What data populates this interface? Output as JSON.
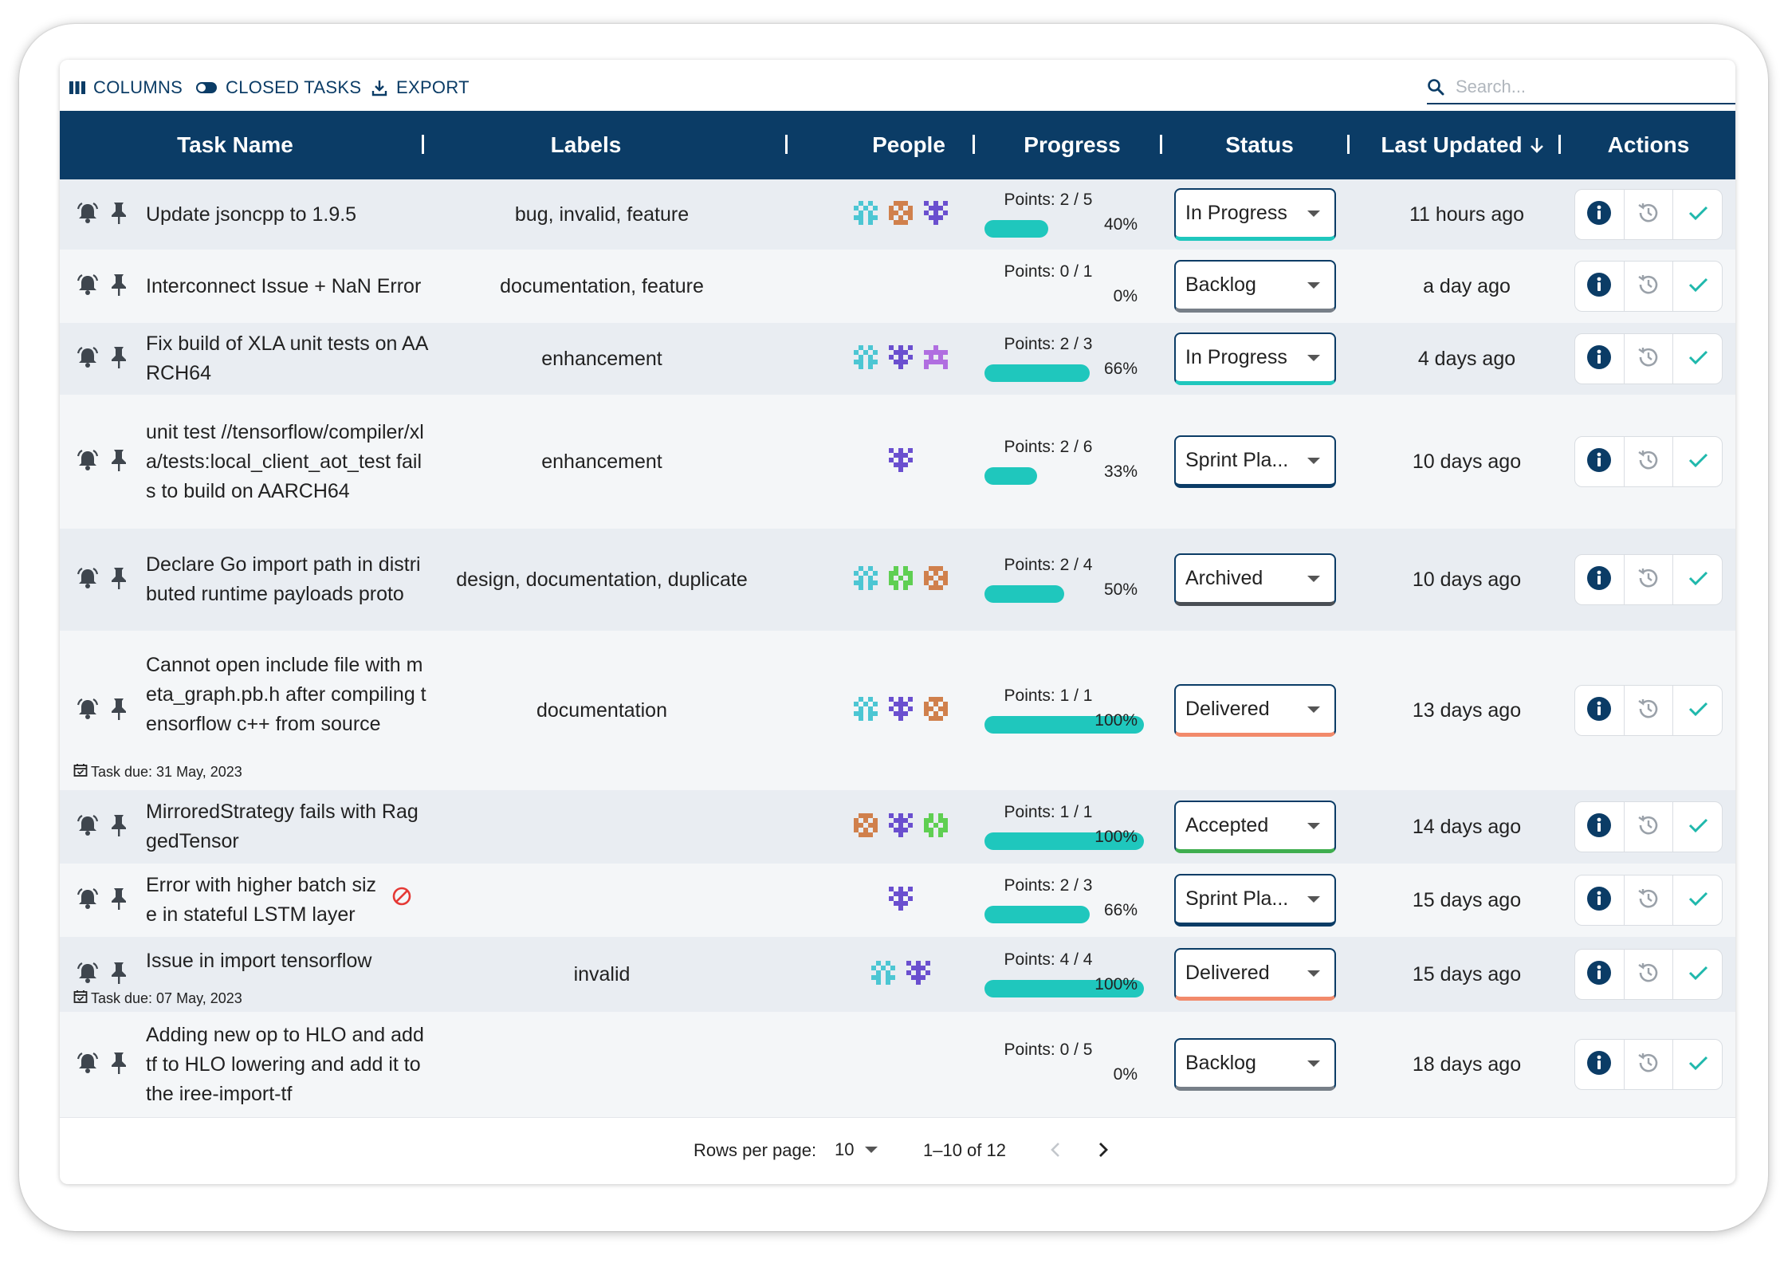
{
  "toolbar": {
    "columns_label": "COLUMNS",
    "closed_tasks_label": "CLOSED TASKS",
    "export_label": "EXPORT",
    "search_placeholder": "Search..."
  },
  "table": {
    "headers": {
      "task_name": "Task Name",
      "labels": "Labels",
      "people": "People",
      "progress": "Progress",
      "status": "Status",
      "last_updated": "Last Updated",
      "actions": "Actions"
    },
    "rows": [
      {
        "name": "Update jsoncpp to 1.9.5",
        "due": "",
        "blocked": false,
        "labels": "bug, invalid, feature",
        "people": [
          "teal",
          "orange",
          "purple"
        ],
        "points": "Points: 2 / 5",
        "percent": "40%",
        "fill": 0.4,
        "status": "In Progress",
        "status_color": "#1fc7bd",
        "updated": "11 hours ago",
        "bg": "#e9edf2"
      },
      {
        "name": "Interconnect Issue + NaN Error",
        "due": "",
        "blocked": false,
        "labels": "documentation, feature",
        "people": [],
        "points": "Points: 0 / 1",
        "percent": "0%",
        "fill": 0,
        "status": "Backlog",
        "status_color": "#777f88",
        "updated": "a day ago",
        "bg": "#f4f6f8"
      },
      {
        "name": "Fix build of XLA unit tests on AARCH64",
        "due": "",
        "blocked": false,
        "labels": "enhancement",
        "people": [
          "teal",
          "purple",
          "violet"
        ],
        "points": "Points: 2 / 3",
        "percent": "66%",
        "fill": 0.66,
        "status": "In Progress",
        "status_color": "#1fc7bd",
        "updated": "4 days ago",
        "bg": "#e9edf2"
      },
      {
        "name": "unit test //tensorflow/compiler/xla/tests:local_client_aot_test fails to build on AARCH64",
        "due": "",
        "blocked": false,
        "labels": "enhancement",
        "people": [
          "purple"
        ],
        "points": "Points: 2 / 6",
        "percent": "33%",
        "fill": 0.33,
        "status": "Sprint Pla...",
        "status_color": "#0b3c66",
        "updated": "10 days ago",
        "bg": "#f4f6f8"
      },
      {
        "name": "Declare Go import path in distributed runtime payloads proto",
        "due": "",
        "blocked": false,
        "labels": "design, documentation, duplicate",
        "people": [
          "teal",
          "green",
          "orange"
        ],
        "points": "Points: 2 / 4",
        "percent": "50%",
        "fill": 0.5,
        "status": "Archived",
        "status_color": "#4a4f55",
        "updated": "10 days ago",
        "bg": "#e9edf2"
      },
      {
        "name": "Cannot open include file with meta_graph.pb.h after compiling tensorflow c++ from source",
        "due": "Task due: 31 May, 2023",
        "blocked": false,
        "labels": "documentation",
        "people": [
          "teal",
          "purple",
          "orange"
        ],
        "points": "Points: 1 / 1",
        "percent": "100%",
        "fill": 1,
        "status": "Delivered",
        "status_color": "#f28a6b",
        "updated": "13 days ago",
        "bg": "#f4f6f8"
      },
      {
        "name": "MirroredStrategy fails with RaggedTensor",
        "due": "",
        "blocked": false,
        "labels": "",
        "people": [
          "orange",
          "purple",
          "green"
        ],
        "points": "Points: 1 / 1",
        "percent": "100%",
        "fill": 1,
        "status": "Accepted",
        "status_color": "#3fae4f",
        "updated": "14 days ago",
        "bg": "#e9edf2"
      },
      {
        "name": "Error with higher batch size in stateful LSTM layer",
        "due": "",
        "blocked": true,
        "labels": "",
        "people": [
          "purple"
        ],
        "points": "Points: 2 / 3",
        "percent": "66%",
        "fill": 0.66,
        "status": "Sprint Pla...",
        "status_color": "#0b3c66",
        "updated": "15 days ago",
        "bg": "#f4f6f8"
      },
      {
        "name": "Issue in import tensorflow",
        "due": "Task due: 07 May, 2023",
        "blocked": false,
        "labels": "invalid",
        "people": [
          "teal",
          "purple"
        ],
        "points": "Points: 4 / 4",
        "percent": "100%",
        "fill": 1,
        "status": "Delivered",
        "status_color": "#f28a6b",
        "updated": "15 days ago",
        "bg": "#e9edf2"
      },
      {
        "name": "Adding new op to HLO and add tf to HLO lowering and add it to the iree-import-tf",
        "due": "",
        "blocked": false,
        "labels": "",
        "people": [],
        "points": "Points: 0 / 5",
        "percent": "0%",
        "fill": 0,
        "status": "Backlog",
        "status_color": "#777f88",
        "updated": "18 days ago",
        "bg": "#f4f6f8"
      }
    ]
  },
  "pagination": {
    "rows_per_page_label": "Rows per page:",
    "rows_per_page_value": "10",
    "range": "1–10 of 12"
  },
  "colors": {
    "primary": "#0b3c66",
    "progress": "#1fc7bd",
    "accept": "#1fb8ac",
    "blocked": "#e53935"
  },
  "icons": {
    "bell": "bell-icon",
    "pin": "pin-icon",
    "info": "info-icon",
    "history": "history-icon",
    "check": "check-icon",
    "calendar": "calendar-icon"
  }
}
